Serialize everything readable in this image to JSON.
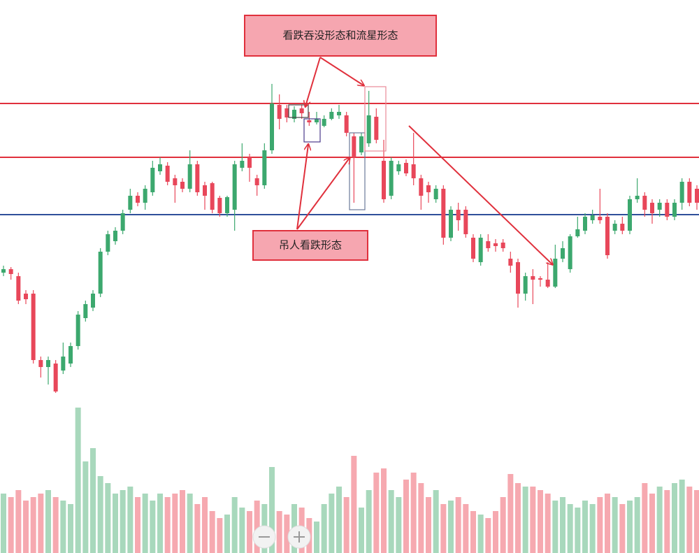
{
  "chart_data": {
    "type": "candlestick",
    "annotations": [
      "看跌吞没形态和流星形态",
      "吊人看跌形态"
    ],
    "ylim": [
      0,
      600
    ],
    "vlim": [
      0,
      220
    ],
    "up_color": "#3ca86e",
    "down_color": "#e8475a",
    "up_volume_color": "#a8d8bc",
    "down_volume_color": "#f6a9b0",
    "levels": [
      {
        "value": 452,
        "color": "#e0303c"
      },
      {
        "value": 375,
        "color": "#e0303c"
      },
      {
        "value": 293,
        "color": "#2f4f9a"
      }
    ],
    "open": [
      210,
      215,
      205,
      180,
      180,
      85,
      75,
      80,
      70,
      80,
      105,
      145,
      160,
      180,
      240,
      255,
      270,
      300,
      320,
      310,
      325,
      355,
      363,
      345,
      340,
      330,
      365,
      335,
      338,
      317,
      295,
      300,
      360,
      375,
      345,
      335,
      385,
      450,
      445,
      430,
      445,
      428,
      425,
      420,
      430,
      435,
      435,
      405,
      382,
      395,
      433,
      370,
      320,
      355,
      367,
      365,
      345,
      335,
      315,
      330,
      260,
      300,
      300,
      260,
      225,
      255,
      252,
      253,
      230,
      225,
      180,
      205,
      202,
      200,
      190,
      230,
      215,
      262,
      270,
      285,
      290,
      290,
      270,
      280,
      270,
      315,
      320,
      310,
      300,
      310,
      290,
      310,
      340,
      330
    ],
    "high": [
      220,
      218,
      210,
      185,
      185,
      90,
      90,
      85,
      110,
      110,
      155,
      170,
      185,
      245,
      270,
      275,
      300,
      330,
      325,
      335,
      370,
      375,
      368,
      350,
      345,
      385,
      370,
      340,
      340,
      320,
      320,
      370,
      395,
      380,
      350,
      395,
      480,
      465,
      450,
      448,
      450,
      440,
      440,
      435,
      445,
      450,
      440,
      410,
      410,
      470,
      445,
      400,
      375,
      370,
      372,
      410,
      350,
      340,
      335,
      335,
      305,
      310,
      305,
      265,
      265,
      265,
      258,
      258,
      240,
      230,
      210,
      215,
      205,
      225,
      250,
      255,
      265,
      290,
      295,
      300,
      330,
      295,
      285,
      290,
      320,
      345,
      325,
      315,
      315,
      315,
      315,
      345,
      345,
      335
    ],
    "low": [
      205,
      200,
      165,
      165,
      80,
      60,
      50,
      38,
      65,
      75,
      100,
      140,
      155,
      175,
      235,
      250,
      265,
      295,
      305,
      300,
      320,
      350,
      335,
      310,
      325,
      325,
      320,
      300,
      295,
      290,
      290,
      270,
      355,
      340,
      320,
      330,
      380,
      415,
      425,
      425,
      430,
      420,
      422,
      418,
      428,
      430,
      405,
      310,
      378,
      390,
      395,
      310,
      315,
      350,
      348,
      335,
      300,
      310,
      310,
      250,
      255,
      270,
      260,
      225,
      220,
      240,
      240,
      240,
      210,
      160,
      170,
      165,
      190,
      188,
      188,
      225,
      210,
      260,
      265,
      280,
      280,
      230,
      265,
      265,
      265,
      310,
      290,
      280,
      290,
      285,
      285,
      300,
      305,
      300
    ],
    "close": [
      215,
      208,
      170,
      172,
      85,
      75,
      85,
      40,
      90,
      105,
      150,
      165,
      180,
      240,
      265,
      270,
      295,
      320,
      310,
      330,
      360,
      365,
      340,
      335,
      330,
      365,
      325,
      320,
      300,
      295,
      318,
      365,
      370,
      360,
      335,
      385,
      452,
      430,
      432,
      443,
      438,
      425,
      430,
      430,
      440,
      440,
      410,
      375,
      405,
      435,
      400,
      315,
      370,
      365,
      352,
      345,
      320,
      325,
      330,
      260,
      300,
      285,
      265,
      230,
      260,
      245,
      248,
      245,
      220,
      180,
      205,
      200,
      200,
      190,
      230,
      245,
      262,
      272,
      290,
      292,
      285,
      235,
      280,
      270,
      315,
      320,
      300,
      295,
      310,
      290,
      310,
      340,
      310,
      310
    ],
    "volume": [
      85,
      80,
      90,
      75,
      80,
      85,
      90,
      80,
      75,
      70,
      208,
      131,
      150,
      110,
      100,
      85,
      90,
      95,
      80,
      85,
      75,
      85,
      80,
      85,
      90,
      85,
      70,
      80,
      60,
      50,
      55,
      80,
      65,
      60,
      75,
      70,
      123,
      60,
      55,
      70,
      65,
      50,
      45,
      70,
      85,
      95,
      80,
      139,
      65,
      90,
      115,
      121,
      90,
      80,
      105,
      115,
      100,
      80,
      90,
      70,
      75,
      80,
      70,
      60,
      55,
      50,
      60,
      80,
      113,
      100,
      95,
      95,
      90,
      85,
      75,
      80,
      70,
      65,
      75,
      70,
      80,
      85,
      80,
      70,
      75,
      80,
      100,
      85,
      95,
      90,
      100,
      105,
      95,
      90
    ]
  }
}
